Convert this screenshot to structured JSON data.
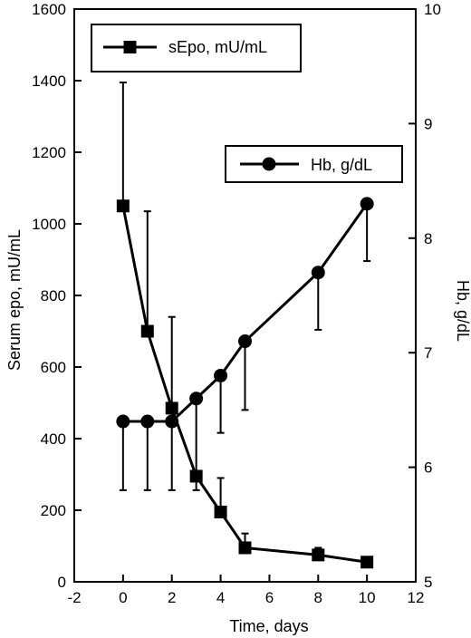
{
  "chart_data": {
    "type": "line",
    "title": "",
    "xlabel": "Time, days",
    "ylabel": "Serum epo, mU/mL",
    "y2label": "Hb, g/dL",
    "xlim": [
      -2,
      12
    ],
    "ylim": [
      0,
      1600
    ],
    "y2lim": [
      5,
      10
    ],
    "x_ticks": [
      -2,
      0,
      2,
      4,
      6,
      8,
      10,
      12
    ],
    "y_ticks": [
      0,
      200,
      400,
      600,
      800,
      1000,
      1200,
      1400,
      1600
    ],
    "y2_ticks": [
      5,
      6,
      7,
      8,
      9,
      10
    ],
    "grid": false,
    "series": [
      {
        "name": "sEpo, mU/mL",
        "axis": "left",
        "marker": "square",
        "x": [
          0,
          1,
          2,
          3,
          4,
          5,
          8,
          10
        ],
        "values": [
          1050,
          700,
          485,
          295,
          195,
          95,
          75,
          55
        ],
        "error_upper": [
          1395,
          1035,
          740,
          295,
          290,
          135,
          95,
          55
        ],
        "legend_position": "top-left"
      },
      {
        "name": "Hb, g/dL",
        "axis": "right",
        "marker": "circle",
        "x": [
          0,
          1,
          2,
          3,
          4,
          5,
          8,
          10
        ],
        "values": [
          6.4,
          6.4,
          6.4,
          6.6,
          6.8,
          7.1,
          7.7,
          8.3
        ],
        "error_lower": [
          5.8,
          5.8,
          5.8,
          5.8,
          6.3,
          6.5,
          7.2,
          7.8
        ],
        "legend_position": "upper-right"
      }
    ]
  }
}
